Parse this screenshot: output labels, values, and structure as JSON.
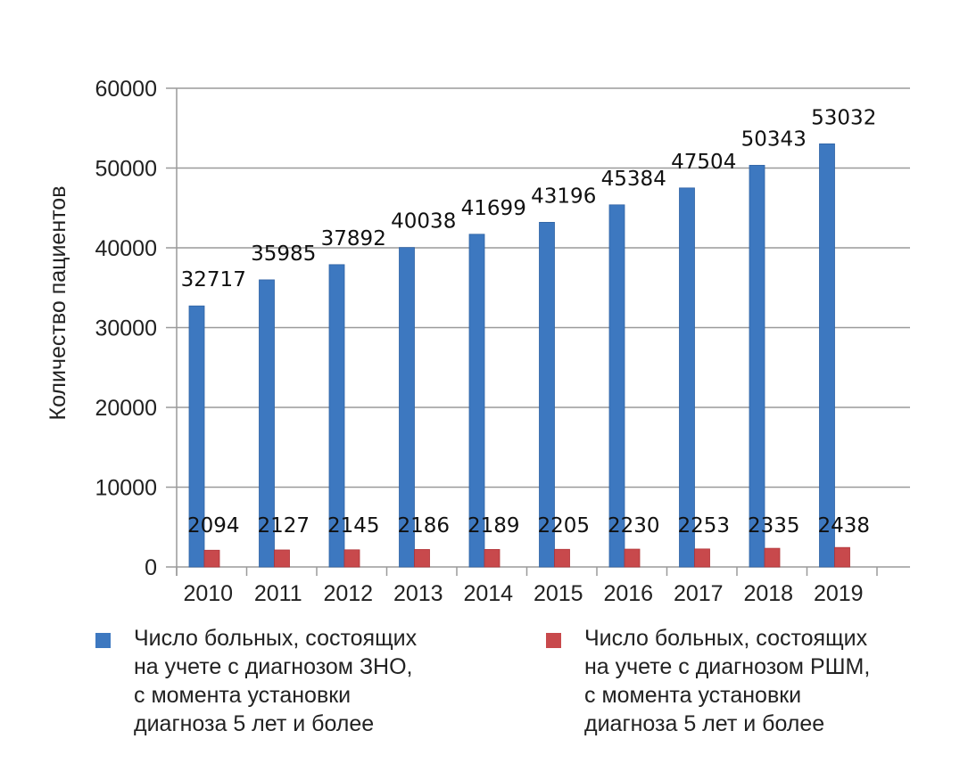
{
  "chart_data": {
    "type": "bar",
    "title": "",
    "xlabel": "",
    "ylabel": "Количество пациентов",
    "ylim": [
      0,
      60000
    ],
    "yticks": [
      0,
      10000,
      20000,
      30000,
      40000,
      50000,
      60000
    ],
    "grid": true,
    "legend_position": "bottom",
    "categories": [
      "2010",
      "2011",
      "2012",
      "2013",
      "2014",
      "2015",
      "2016",
      "2017",
      "2018",
      "2019"
    ],
    "series": [
      {
        "name": "Число больных, состоящих\nна учете с диагнозом ЗНО,\nс момента установки\nдиагноза 5 лет и более",
        "color": "#3d78c0",
        "values": [
          32717,
          35985,
          37892,
          40038,
          41699,
          43196,
          45384,
          47504,
          50343,
          53032
        ]
      },
      {
        "name": "Число больных, состоящих\nна учете с диагнозом РШМ,\nс момента установки\nдиагноза 5 лет и более",
        "color": "#c8494c",
        "values": [
          2094,
          2127,
          2145,
          2186,
          2189,
          2205,
          2230,
          2253,
          2335,
          2438
        ]
      }
    ]
  }
}
